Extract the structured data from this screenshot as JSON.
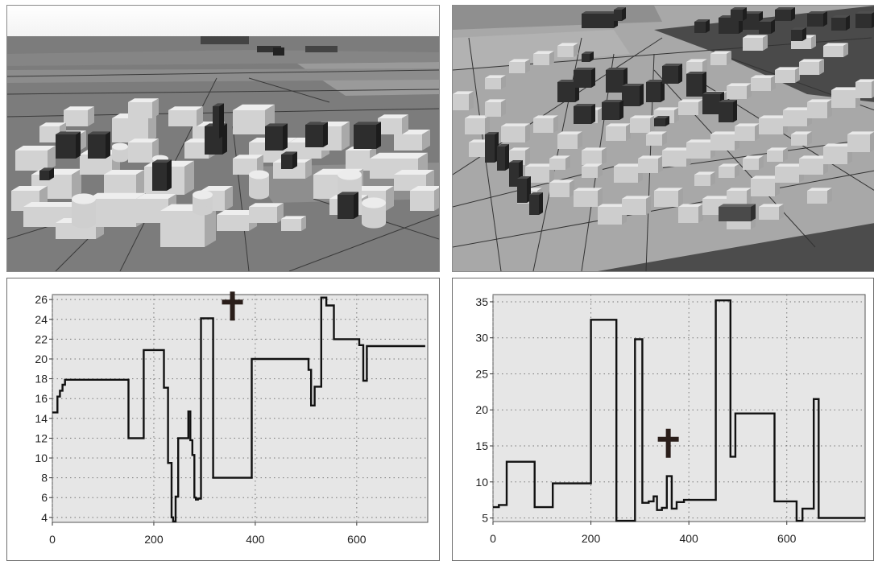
{
  "panels": {
    "top_left": {
      "type": "3d-city-view"
    },
    "top_right": {
      "type": "3d-city-view"
    }
  },
  "colors": {
    "ground": "#7a7a7a",
    "light_building": "#d9d9d9",
    "dark_building": "#2c2c2c",
    "plot_background": "#e6e6e6",
    "profile_line": "#111111",
    "marker": "#2a1e1a"
  },
  "chart_data": [
    {
      "type": "line",
      "title": "",
      "xlabel": "",
      "ylabel": "",
      "xlim": [
        0,
        740
      ],
      "ylim": [
        3.5,
        26.5
      ],
      "xticks": [
        0,
        200,
        400,
        600
      ],
      "yticks": [
        4,
        6,
        8,
        10,
        12,
        14,
        16,
        18,
        20,
        22,
        24,
        26
      ],
      "grid": true,
      "marker": {
        "symbol": "cross",
        "x": 355,
        "y": 24.2
      },
      "x": [
        0,
        10,
        10,
        15,
        15,
        20,
        20,
        25,
        25,
        150,
        150,
        180,
        180,
        220,
        220,
        228,
        228,
        235,
        235,
        238,
        238,
        243,
        243,
        248,
        248,
        268,
        268,
        272,
        272,
        276,
        276,
        280,
        280,
        283,
        283,
        287,
        287,
        293,
        293,
        317,
        317,
        393,
        393,
        505,
        505,
        510,
        510,
        517,
        517,
        522,
        522,
        530,
        530,
        540,
        540,
        555,
        555,
        605,
        605,
        613,
        613,
        620,
        620,
        715,
        715,
        735
      ],
      "y": [
        14.6,
        14.6,
        16.2,
        16.2,
        16.8,
        16.8,
        17.4,
        17.4,
        17.9,
        17.9,
        12.0,
        12.0,
        20.9,
        20.9,
        17.1,
        17.1,
        9.5,
        9.5,
        4.0,
        4.0,
        3.6,
        3.6,
        6.1,
        6.1,
        12.0,
        12.0,
        14.7,
        14.7,
        11.8,
        11.8,
        10.3,
        10.3,
        6.0,
        6.0,
        5.8,
        5.8,
        5.9,
        5.9,
        24.1,
        24.1,
        8.0,
        8.0,
        20.0,
        20.0,
        18.9,
        18.9,
        15.3,
        15.3,
        17.2,
        17.2,
        17.2,
        17.2,
        26.2,
        26.2,
        25.4,
        25.4,
        22.0,
        22.0,
        21.4,
        21.4,
        17.8,
        17.8,
        21.3,
        21.3,
        21.3,
        21.3
      ]
    },
    {
      "type": "line",
      "title": "",
      "xlabel": "",
      "ylabel": "",
      "xlim": [
        0,
        760
      ],
      "ylim": [
        4.5,
        36
      ],
      "xticks": [
        0,
        200,
        400,
        600
      ],
      "yticks": [
        5,
        10,
        15,
        20,
        25,
        30,
        35
      ],
      "grid": true,
      "marker": {
        "symbol": "cross",
        "x": 358,
        "y": 13.8
      },
      "x": [
        0,
        12,
        12,
        28,
        28,
        85,
        85,
        122,
        122,
        200,
        200,
        252,
        252,
        290,
        290,
        305,
        305,
        318,
        318,
        328,
        328,
        335,
        335,
        345,
        345,
        355,
        355,
        365,
        365,
        375,
        375,
        390,
        390,
        455,
        455,
        485,
        485,
        495,
        495,
        575,
        575,
        620,
        620,
        632,
        632,
        655,
        655,
        665,
        665,
        755,
        755,
        760
      ],
      "y": [
        6.5,
        6.5,
        6.8,
        6.8,
        12.8,
        12.8,
        6.5,
        6.5,
        9.8,
        9.8,
        32.5,
        32.5,
        4.6,
        4.6,
        29.8,
        29.8,
        7.1,
        7.1,
        7.3,
        7.3,
        8.0,
        8.0,
        6.1,
        6.1,
        6.4,
        6.4,
        10.8,
        10.8,
        6.3,
        6.3,
        7.2,
        7.2,
        7.5,
        7.5,
        35.2,
        35.2,
        13.5,
        13.5,
        19.5,
        19.5,
        7.3,
        7.3,
        4.6,
        4.6,
        6.3,
        6.3,
        21.5,
        21.5,
        5.0,
        5.0,
        5.0,
        5.0
      ]
    }
  ]
}
